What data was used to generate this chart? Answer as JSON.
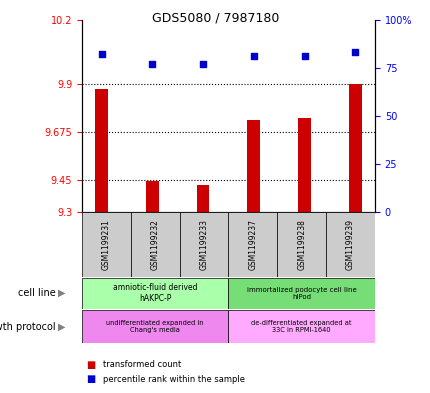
{
  "title": "GDS5080 / 7987180",
  "samples": [
    "GSM1199231",
    "GSM1199232",
    "GSM1199233",
    "GSM1199237",
    "GSM1199238",
    "GSM1199239"
  ],
  "bar_values": [
    9.875,
    9.447,
    9.425,
    9.73,
    9.74,
    9.9
  ],
  "scatter_values": [
    82,
    77,
    77,
    81,
    81,
    83
  ],
  "bar_color": "#cc0000",
  "scatter_color": "#0000cc",
  "ylim_left": [
    9.3,
    10.2
  ],
  "ylim_right": [
    0,
    100
  ],
  "yticks_left": [
    9.3,
    9.45,
    9.675,
    9.9,
    10.2
  ],
  "ytick_labels_left": [
    "9.3",
    "9.45",
    "9.675",
    "9.9",
    "10.2"
  ],
  "yticks_right": [
    0,
    25,
    50,
    75,
    100
  ],
  "ytick_labels_right": [
    "0",
    "25",
    "50",
    "75",
    "100%"
  ],
  "hlines": [
    9.9,
    9.675,
    9.45
  ],
  "cell_line_labels": [
    "amniotic-fluid derived\nhAKPC-P",
    "immortalized podocyte cell line\nhIPod"
  ],
  "cell_line_colors": [
    "#aaffaa",
    "#77dd77"
  ],
  "growth_protocol_labels": [
    "undifferentiated expanded in\nChang's media",
    "de-differentiated expanded at\n33C in RPMI-1640"
  ],
  "growth_protocol_colors": [
    "#ee88ee",
    "#ffaaff"
  ],
  "legend_red": "transformed count",
  "legend_blue": "percentile rank within the sample",
  "cell_line_label": "cell line",
  "growth_protocol_label": "growth protocol",
  "bar_width": 0.25
}
